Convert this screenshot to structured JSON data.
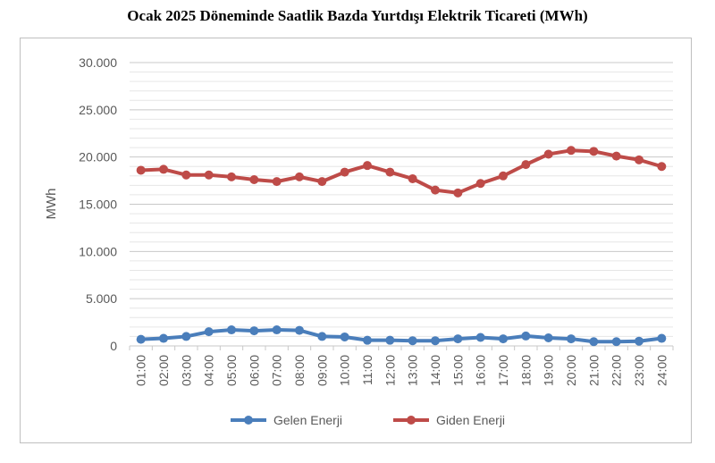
{
  "chart_data": {
    "type": "line",
    "title": "Ocak 2025 Döneminde Saatlik Bazda Yurtdışı Elektrik Ticareti (MWh)",
    "xlabel": "",
    "ylabel": "MWh",
    "ylim": [
      0,
      30000
    ],
    "yticks": [
      0,
      5000,
      10000,
      15000,
      20000,
      25000,
      30000
    ],
    "ytick_labels": [
      "0",
      "5.000",
      "10.000",
      "15.000",
      "20.000",
      "25.000",
      "30.000"
    ],
    "grid": true,
    "legend": "bottom",
    "categories": [
      "01:00",
      "02:00",
      "03:00",
      "04:00",
      "05:00",
      "06:00",
      "07:00",
      "08:00",
      "09:00",
      "10:00",
      "11:00",
      "12:00",
      "13:00",
      "14:00",
      "15:00",
      "16:00",
      "17:00",
      "18:00",
      "19:00",
      "20:00",
      "21:00",
      "22:00",
      "23:00",
      "24:00"
    ],
    "series": [
      {
        "name": "Gelen Enerji",
        "color": "#4a7ebb",
        "values": [
          700,
          800,
          1000,
          1500,
          1700,
          1600,
          1700,
          1650,
          1000,
          950,
          600,
          600,
          550,
          550,
          750,
          900,
          750,
          1050,
          850,
          750,
          450,
          450,
          500,
          800
        ]
      },
      {
        "name": "Giden Enerji",
        "color": "#be4b48",
        "values": [
          18600,
          18700,
          18100,
          18100,
          17900,
          17600,
          17400,
          17900,
          17400,
          18400,
          19100,
          18400,
          17700,
          16500,
          16200,
          17200,
          18000,
          19200,
          20300,
          20700,
          20600,
          20100,
          19700,
          19000
        ]
      }
    ]
  }
}
